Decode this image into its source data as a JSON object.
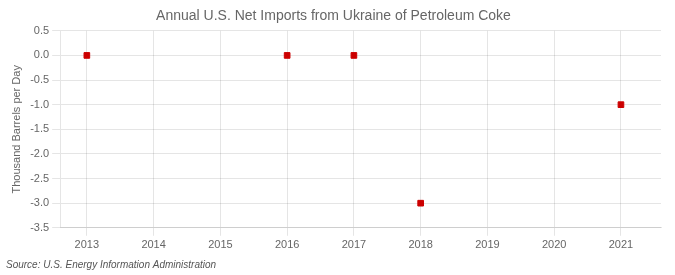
{
  "chart_data": {
    "type": "scatter",
    "title": "Annual U.S. Net Imports from Ukraine of Petroleum Coke",
    "ylabel": "Thousand Barrels per Day",
    "annotation": "Source: U.S. Energy Information Administration",
    "x": [
      2013,
      2016,
      2017,
      2018,
      2021
    ],
    "values": [
      0.0,
      0.0,
      0.0,
      -3.0,
      -1.0
    ],
    "color": "#cc0000",
    "marker": "square",
    "xlim": [
      2012.6,
      2021.6
    ],
    "ylim": [
      -3.5,
      0.5
    ],
    "xticks": [
      2013,
      2014,
      2015,
      2016,
      2017,
      2018,
      2019,
      2020,
      2021
    ],
    "yticks": [
      0.5,
      {
        "value": 0,
        "label": "0.0"
      },
      -0.5,
      {
        "value": -1,
        "label": "-1.0"
      },
      -1.5,
      {
        "value": -2,
        "label": "-2.0"
      },
      -2.5,
      {
        "value": -3,
        "label": "-3.0"
      },
      -3.5
    ],
    "grid": true
  }
}
